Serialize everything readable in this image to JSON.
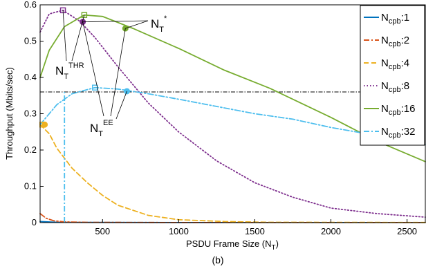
{
  "chart_data": {
    "type": "line",
    "caption": "(b)",
    "xlabel": "PSDU Frame Size (N",
    "xlabel_sub": "T",
    "xlabel_suffix": ")",
    "ylabel": "Throughput (Mbits/sec)",
    "xlim": [
      90,
      2620
    ],
    "ylim": [
      0,
      0.6
    ],
    "xticks": [
      500,
      1000,
      1500,
      2000,
      2500
    ],
    "yticks": [
      0,
      0.1,
      0.2,
      0.3,
      0.4,
      0.5,
      0.6
    ],
    "grid": false,
    "legend_position": "top-right",
    "legend_prefix": "N",
    "legend_sub": "cpb",
    "threshold_line": 0.36,
    "series": [
      {
        "name": ":1",
        "color": "#0072bd",
        "style": "solid",
        "points": [
          [
            90,
            0.003
          ],
          [
            200,
            0.001
          ],
          [
            400,
            0.0005
          ],
          [
            1000,
            0.0002
          ],
          [
            2620,
            0.0001
          ]
        ],
        "markers": []
      },
      {
        "name": ":2",
        "color": "#d95319",
        "style": "dashdot",
        "points": [
          [
            90,
            0.025
          ],
          [
            130,
            0.012
          ],
          [
            180,
            0.005
          ],
          [
            250,
            0.002
          ],
          [
            400,
            0.0008
          ],
          [
            1000,
            0.0002
          ],
          [
            2620,
            0.0001
          ]
        ],
        "markers": []
      },
      {
        "name": ":4",
        "color": "#edb120",
        "style": "dashed",
        "points": [
          [
            90,
            0.27
          ],
          [
            150,
            0.245
          ],
          [
            200,
            0.205
          ],
          [
            300,
            0.15
          ],
          [
            400,
            0.11
          ],
          [
            500,
            0.075
          ],
          [
            600,
            0.048
          ],
          [
            800,
            0.02
          ],
          [
            1000,
            0.008
          ],
          [
            1300,
            0.003
          ],
          [
            1600,
            0.001
          ],
          [
            2620,
            0.0003
          ]
        ],
        "markers": [
          {
            "x": 105,
            "y": 0.27,
            "shape": "square"
          },
          {
            "x": 120,
            "y": 0.27,
            "shape": "circle"
          }
        ]
      },
      {
        "name": ":8",
        "color": "#7e2f8e",
        "style": "dotted",
        "points": [
          [
            90,
            0.525
          ],
          [
            150,
            0.575
          ],
          [
            240,
            0.585
          ],
          [
            350,
            0.555
          ],
          [
            450,
            0.51
          ],
          [
            600,
            0.43
          ],
          [
            800,
            0.33
          ],
          [
            1000,
            0.25
          ],
          [
            1250,
            0.17
          ],
          [
            1500,
            0.11
          ],
          [
            1750,
            0.07
          ],
          [
            2000,
            0.04
          ],
          [
            2300,
            0.025
          ],
          [
            2620,
            0.015
          ]
        ],
        "markers": [
          {
            "x": 240,
            "y": 0.585,
            "shape": "square"
          },
          {
            "x": 370,
            "y": 0.553,
            "shape": "circle"
          }
        ]
      },
      {
        "name": ":16",
        "color": "#77ac30",
        "style": "solid",
        "points": [
          [
            90,
            0.4
          ],
          [
            150,
            0.475
          ],
          [
            250,
            0.54
          ],
          [
            380,
            0.572
          ],
          [
            500,
            0.568
          ],
          [
            700,
            0.535
          ],
          [
            1000,
            0.48
          ],
          [
            1300,
            0.42
          ],
          [
            1600,
            0.37
          ],
          [
            2000,
            0.29
          ],
          [
            2300,
            0.225
          ],
          [
            2620,
            0.168
          ]
        ],
        "markers": [
          {
            "x": 380,
            "y": 0.572,
            "shape": "square"
          },
          {
            "x": 650,
            "y": 0.535,
            "shape": "circle"
          }
        ]
      },
      {
        "name": ":32",
        "color": "#4dbeee",
        "style": "dashdot",
        "points": [
          [
            90,
            0.27
          ],
          [
            200,
            0.325
          ],
          [
            300,
            0.355
          ],
          [
            450,
            0.372
          ],
          [
            600,
            0.368
          ],
          [
            800,
            0.355
          ],
          [
            1000,
            0.34
          ],
          [
            1250,
            0.32
          ],
          [
            1500,
            0.3
          ],
          [
            1750,
            0.285
          ],
          [
            2000,
            0.262
          ],
          [
            2300,
            0.24
          ],
          [
            2620,
            0.215
          ]
        ],
        "markers": [
          {
            "x": 450,
            "y": 0.372,
            "shape": "square"
          },
          {
            "x": 660,
            "y": 0.362,
            "shape": "circle"
          }
        ],
        "drop_line_x": 250
      }
    ],
    "annotations": [
      {
        "id": "nt-star",
        "base": "N",
        "sub": "T",
        "sup": "*"
      },
      {
        "id": "nt-thr",
        "base": "N",
        "sub": "T",
        "sup": "THR"
      },
      {
        "id": "nt-ee",
        "base": "N",
        "sub": "T",
        "sup": "EE"
      }
    ]
  }
}
